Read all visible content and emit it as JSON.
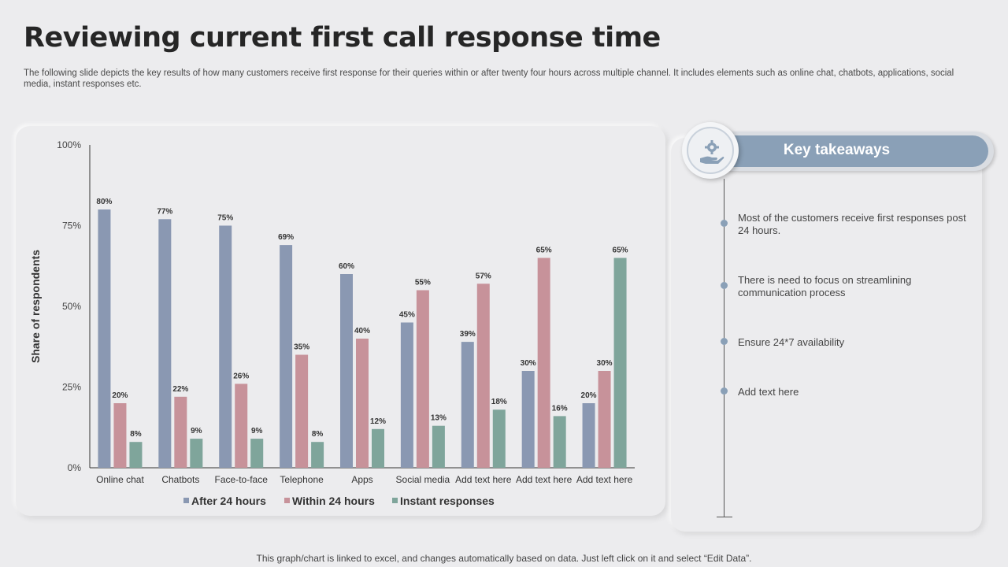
{
  "page": {
    "title": "Reviewing current first call response time",
    "subtitle": "The following slide depicts the key results of how many customers receive first response for their queries within or after twenty four hours across multiple channel. It includes elements such as online chat, chatbots, applications, social media, instant responses etc.",
    "footer": "This graph/chart is linked to excel, and changes automatically based on data. Just left click on it and select “Edit Data”."
  },
  "takeaways": {
    "title": "Key takeaways",
    "icon": "hand-gear-icon",
    "items": [
      "Most of the customers receive first responses post 24 hours.",
      "There is need to focus on streamlining communication process",
      "Ensure 24*7 availability",
      "Add text here"
    ]
  },
  "chart_data": {
    "type": "bar",
    "title": "",
    "xlabel": "",
    "ylabel": "Share of respondents",
    "ylim": [
      0,
      100
    ],
    "yticks": [
      0,
      25,
      50,
      75,
      100
    ],
    "ytick_labels": [
      "0%",
      "25%",
      "50%",
      "75%",
      "100%"
    ],
    "grid": false,
    "legend_position": "bottom",
    "categories": [
      "Online chat",
      "Chatbots",
      "Face-to-face",
      "Telephone",
      "Apps",
      "Social media",
      "Add text here",
      "Add text here",
      "Add text here"
    ],
    "series": [
      {
        "name": "After 24 hours",
        "color": "#8a98b2",
        "values": [
          80,
          77,
          75,
          69,
          60,
          45,
          39,
          30,
          20
        ]
      },
      {
        "name": "Within 24 hours",
        "color": "#c7929a",
        "values": [
          20,
          22,
          26,
          35,
          40,
          55,
          57,
          65,
          30
        ]
      },
      {
        "name": "Instant responses",
        "color": "#7fa59b",
        "values": [
          8,
          9,
          9,
          8,
          12,
          13,
          18,
          16,
          65
        ]
      }
    ]
  }
}
